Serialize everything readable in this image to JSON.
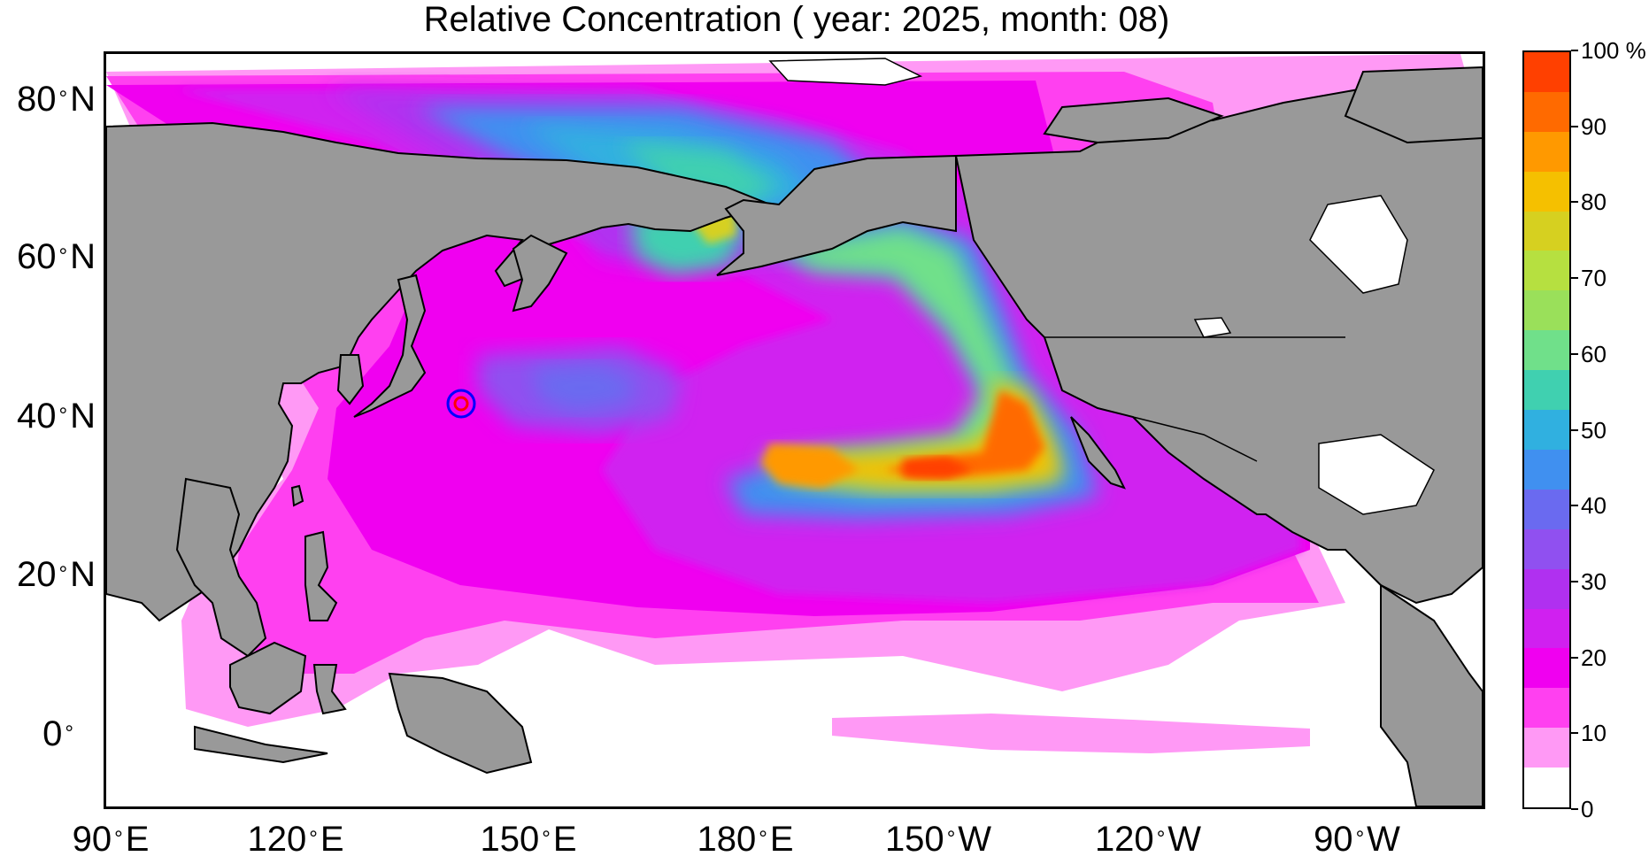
{
  "title": "Relative Concentration ( year: 2025, month: 08)",
  "lat_labels": [
    "80",
    "60",
    "40",
    "20",
    "0"
  ],
  "lat_suffix": "N",
  "lon_labels": [
    {
      "deg": "90",
      "dir": "E"
    },
    {
      "deg": "120",
      "dir": "E"
    },
    {
      "deg": "150",
      "dir": "E"
    },
    {
      "deg": "180",
      "dir": "E"
    },
    {
      "deg": "150",
      "dir": "W"
    },
    {
      "deg": "120",
      "dir": "W"
    },
    {
      "deg": "90",
      "dir": "W"
    }
  ],
  "colorbar": {
    "labels": [
      "100 %",
      "90",
      "80",
      "70",
      "60",
      "50",
      "40",
      "30",
      "20",
      "10",
      "0"
    ],
    "colors": [
      "#ff4000",
      "#ff6a00",
      "#ff9900",
      "#f5c000",
      "#d6d020",
      "#b6e040",
      "#9ae05a",
      "#70e08a",
      "#40d0b0",
      "#30b0e0",
      "#4090f0",
      "#6a6af0",
      "#9050f0",
      "#b030f0",
      "#d020f0",
      "#f000f0",
      "#ff40f0",
      "#ff99f5",
      "#ffffff"
    ]
  },
  "colors": {
    "land": "#999999",
    "coastline": "#000000",
    "release_site_inner": "#ff0000",
    "release_site_outer": "#0000ff"
  },
  "map": {
    "extent_lon": [
      "90 E",
      "75 W"
    ],
    "extent_lat": [
      "10 S",
      "86 N"
    ],
    "markers": [
      {
        "name": "release-site",
        "lat": 37.4,
        "lon": 141.0
      }
    ]
  }
}
